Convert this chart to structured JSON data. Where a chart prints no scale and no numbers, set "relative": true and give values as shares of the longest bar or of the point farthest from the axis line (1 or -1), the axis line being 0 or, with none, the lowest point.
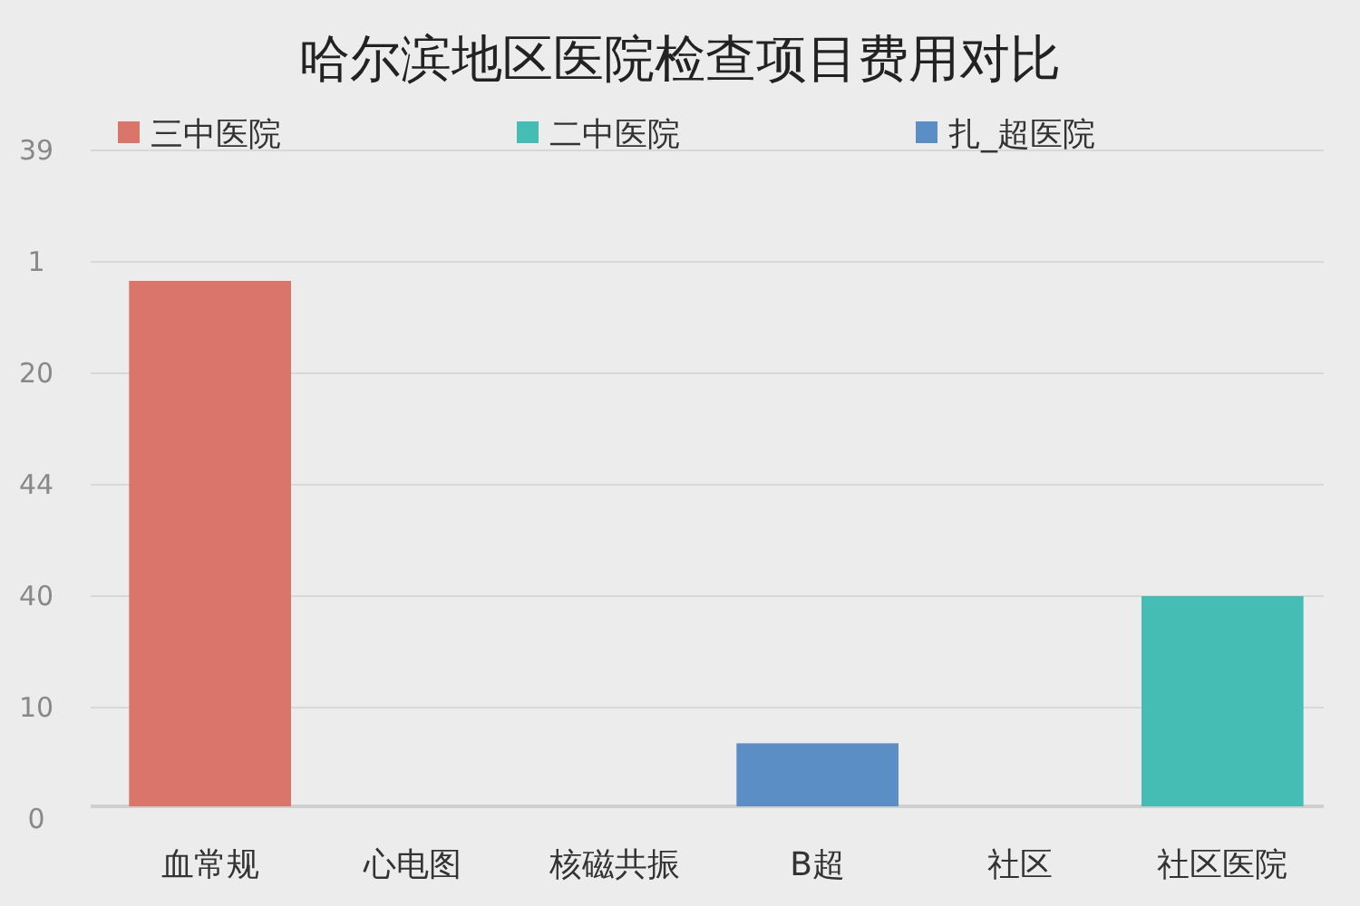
{
  "chart_data": {
    "type": "bar",
    "title": "哈尔滨地区医院检查项目费用对比",
    "relative": true,
    "categories": [
      "血常规",
      "心电图",
      "核磁共振",
      "B超",
      "社区",
      "社区医院"
    ],
    "series": [
      {
        "name": "三中医院",
        "color": "#d9756b",
        "values": [
          1,
          null,
          null,
          null,
          null,
          null
        ]
      },
      {
        "name": "二中医院",
        "color": "#45bdb5",
        "values": [
          null,
          null,
          null,
          null,
          null,
          0.4
        ]
      },
      {
        "name": "扎_超医院",
        "color": "#5b8ec4",
        "values": [
          null,
          null,
          null,
          0.12,
          null,
          null
        ]
      }
    ],
    "annotations": [
      "39",
      "1",
      "20",
      "44",
      "40",
      "10",
      "0"
    ],
    "grid": true,
    "legend": "top"
  }
}
